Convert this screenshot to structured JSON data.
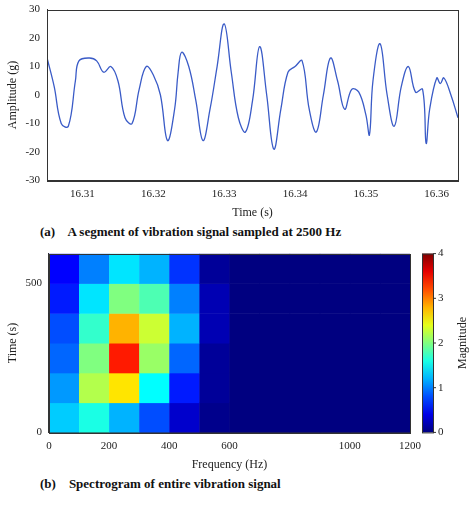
{
  "chart_data": [
    {
      "type": "line",
      "caption": "(a)    A segment of vibration signal sampled at 2500 Hz",
      "x_label": "Time (s)",
      "y_label": "Amplitude (g)",
      "xlim": [
        16.305,
        16.363
      ],
      "xticks": [
        16.31,
        16.32,
        16.33,
        16.34,
        16.35,
        16.36
      ],
      "ylim": [
        -30,
        30
      ],
      "yticks": [
        -30,
        -20,
        -10,
        0,
        10,
        20,
        30
      ],
      "grid": false,
      "color": "#3a5bc7",
      "x": [
        16.305,
        16.306,
        16.307,
        16.308,
        16.309,
        16.3095,
        16.311,
        16.312,
        16.313,
        16.314,
        16.315,
        16.316,
        16.317,
        16.318,
        16.319,
        16.32,
        16.321,
        16.322,
        16.323,
        16.3235,
        16.324,
        16.325,
        16.326,
        16.327,
        16.328,
        16.329,
        16.33,
        16.331,
        16.332,
        16.333,
        16.334,
        16.335,
        16.336,
        16.337,
        16.338,
        16.339,
        16.34,
        16.341,
        16.342,
        16.343,
        16.344,
        16.345,
        16.346,
        16.347,
        16.348,
        16.349,
        16.35,
        16.3505,
        16.351,
        16.352,
        16.353,
        16.354,
        16.355,
        16.356,
        16.357,
        16.358,
        16.3585,
        16.359,
        16.36,
        16.3605,
        16.361,
        16.362,
        16.363
      ],
      "values": [
        13,
        3,
        -10,
        -11,
        5,
        12,
        13,
        12,
        8,
        10,
        5,
        -8,
        -10,
        2,
        10,
        7,
        0,
        -16,
        -5,
        8,
        15,
        10,
        -2,
        -16,
        -5,
        10,
        25,
        8,
        -8,
        -13,
        -2,
        17,
        0,
        -19,
        -5,
        8,
        10,
        12,
        -5,
        -13,
        0,
        13,
        5,
        -5,
        2,
        1,
        -7,
        -14,
        5,
        18,
        0,
        -11,
        3,
        10,
        1,
        2,
        -17,
        -5,
        6,
        4,
        6,
        0,
        -8
      ]
    },
    {
      "type": "heatmap",
      "caption": "(b)    Spectrogram of entire vibration signal",
      "x_label": "Frequency (Hz)",
      "y_label": "Time (s)",
      "z_label": "Magnitude",
      "xlim": [
        0,
        1200
      ],
      "xticks": [
        0,
        200,
        400,
        600,
        1000,
        1200
      ],
      "ylim": [
        0,
        600
      ],
      "yticks": [
        0,
        500
      ],
      "zlim": [
        0,
        4
      ],
      "zticks": [
        0,
        1,
        2,
        3,
        4
      ],
      "x": [
        50,
        150,
        250,
        350,
        450,
        550,
        650,
        750,
        850,
        950,
        1050,
        1150
      ],
      "y": [
        50,
        150,
        250,
        350,
        450,
        550
      ],
      "cells": [
        [
          1.3,
          1.6,
          1.2,
          0.8,
          0.3,
          0.05,
          0,
          0,
          0,
          0,
          0,
          0
        ],
        [
          1.1,
          2.2,
          2.6,
          1.5,
          0.6,
          0.1,
          0,
          0,
          0,
          0,
          0,
          0
        ],
        [
          0.9,
          2.0,
          3.4,
          2.1,
          0.9,
          0.1,
          0,
          0,
          0,
          0,
          0,
          0
        ],
        [
          0.8,
          1.7,
          2.8,
          2.3,
          1.2,
          0.2,
          0,
          0,
          0,
          0,
          0,
          0
        ],
        [
          0.6,
          1.4,
          2.0,
          1.8,
          1.0,
          0.2,
          0,
          0,
          0,
          0,
          0,
          0
        ],
        [
          0.5,
          1.0,
          1.4,
          1.2,
          0.7,
          0.1,
          0,
          0,
          0,
          0,
          0,
          0
        ]
      ]
    }
  ]
}
